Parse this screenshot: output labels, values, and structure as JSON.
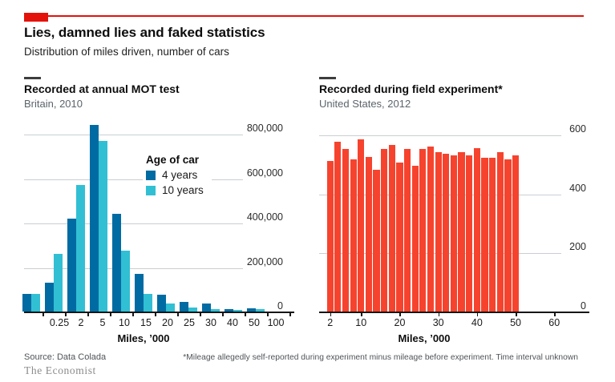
{
  "brand": {
    "red": "#E3120B",
    "wordmark": "The Economist"
  },
  "header": {
    "title": "Lies, damned lies and faked statistics",
    "subtitle": "Distribution of miles driven, number of cars"
  },
  "chart_data": [
    {
      "type": "bar",
      "title": "Recorded at annual MOT test",
      "subtitle": "Britain, 2010",
      "xlabel": "Miles, ’000",
      "categories": [
        "0.25",
        "2",
        "5",
        "10",
        "15",
        "20",
        "25",
        "30",
        "40",
        "50",
        "100"
      ],
      "series": [
        {
          "name": "4 years",
          "color": "#006BA2",
          "values": [
            80000,
            130000,
            420000,
            840000,
            440000,
            170000,
            75000,
            45000,
            35000,
            12000,
            15000
          ]
        },
        {
          "name": "10 years",
          "color": "#31BFD4",
          "values": [
            80000,
            260000,
            570000,
            770000,
            275000,
            80000,
            35000,
            18000,
            10000,
            8000,
            12000
          ]
        }
      ],
      "legend_title": "Age of car",
      "legend_position": "inside-center",
      "grid": true,
      "ylim": [
        0,
        850000
      ],
      "yticks": [
        0,
        200000,
        400000,
        600000,
        800000
      ],
      "ytick_labels": [
        "0",
        "200,000",
        "400,000",
        "600,000",
        "800,000"
      ]
    },
    {
      "type": "bar",
      "title": "Recorded during field experiment*",
      "subtitle": "United States, 2012",
      "xlabel": "Miles, ’000",
      "bin_start": 2,
      "bin_width": 2,
      "color": "#F6432E",
      "values": [
        510,
        575,
        550,
        515,
        585,
        525,
        480,
        550,
        565,
        505,
        550,
        495,
        550,
        560,
        540,
        535,
        530,
        540,
        530,
        555,
        520,
        520,
        540,
        515,
        530
      ],
      "grid": true,
      "xticks": [
        2,
        10,
        20,
        30,
        40,
        50,
        60
      ],
      "ylim": [
        0,
        600
      ],
      "yticks": [
        0,
        200,
        400,
        600
      ],
      "ytick_labels": [
        "0",
        "200",
        "400",
        "600"
      ]
    }
  ],
  "footer": {
    "source": "Source: Data Colada",
    "footnote": "*Mileage allegedly self-reported during experiment minus mileage before experiment. Time interval unknown"
  }
}
